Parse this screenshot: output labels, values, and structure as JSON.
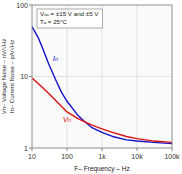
{
  "chart_data": {
    "type": "line",
    "xlabel": "F– Frequency – Hz",
    "ylabel": [
      "Vn– Voltage Noise – nV/√Hz",
      "In– Current Noise – pA/√Hz"
    ],
    "annotations": [
      "Vₒₒ = ±15 V and ±5 V",
      "Tₐ = 25°C"
    ],
    "x": [
      10,
      15,
      20,
      30,
      50,
      70,
      100,
      200,
      300,
      500,
      1000,
      2000,
      5000,
      10000,
      30000,
      100000
    ],
    "series": [
      {
        "name": "Iₙ",
        "color": "#1111cc",
        "values": [
          50,
          35,
          25,
          15,
          8.5,
          6.0,
          4.5,
          2.9,
          2.4,
          1.95,
          1.65,
          1.45,
          1.3,
          1.25,
          1.2,
          1.15
        ]
      },
      {
        "name": "Vₙ",
        "color": "#dd1111",
        "values": [
          9.5,
          8.0,
          7.0,
          5.8,
          4.5,
          3.8,
          3.2,
          2.6,
          2.35,
          2.1,
          1.85,
          1.65,
          1.45,
          1.35,
          1.25,
          1.2
        ]
      }
    ],
    "xlim": [
      10,
      100000
    ],
    "ylim": [
      1,
      100
    ],
    "xticks": [
      10,
      100,
      {
        "value": 1000,
        "label": "1k"
      },
      {
        "value": 10000,
        "label": "10k"
      },
      {
        "value": 100000,
        "label": "100k"
      }
    ],
    "yticks": [
      1,
      10,
      100
    ],
    "log": true,
    "grid": true
  }
}
